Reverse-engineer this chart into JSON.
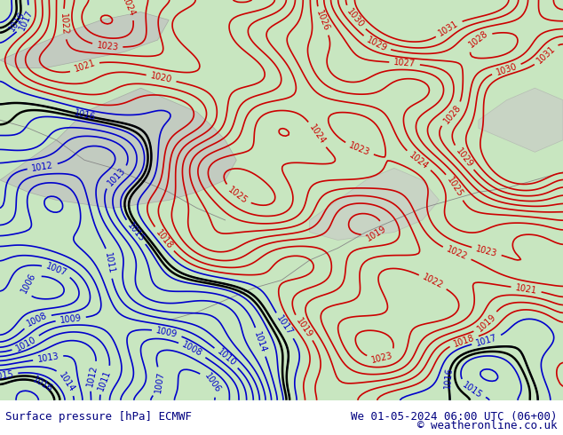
{
  "title_left": "Surface pressure [hPa] ECMWF",
  "title_right": "We 01-05-2024 06:00 UTC (06+00)",
  "copyright": "© weatheronline.co.uk",
  "bg_color": "#c8e6c0",
  "land_color": "#c8e6c0",
  "sea_color": "#e8e8e8",
  "elevated_color": "#b0b0b0",
  "red_contour_color": "#cc0000",
  "blue_contour_color": "#0000cc",
  "black_contour_color": "#000000",
  "gray_contour_color": "#888888",
  "bottom_bar_color": "#ffffff",
  "bottom_bar_height": 0.08,
  "font_size_bottom": 9,
  "contour_linewidth": 1.2,
  "label_fontsize": 7,
  "figsize": [
    6.34,
    4.9
  ],
  "dpi": 100
}
